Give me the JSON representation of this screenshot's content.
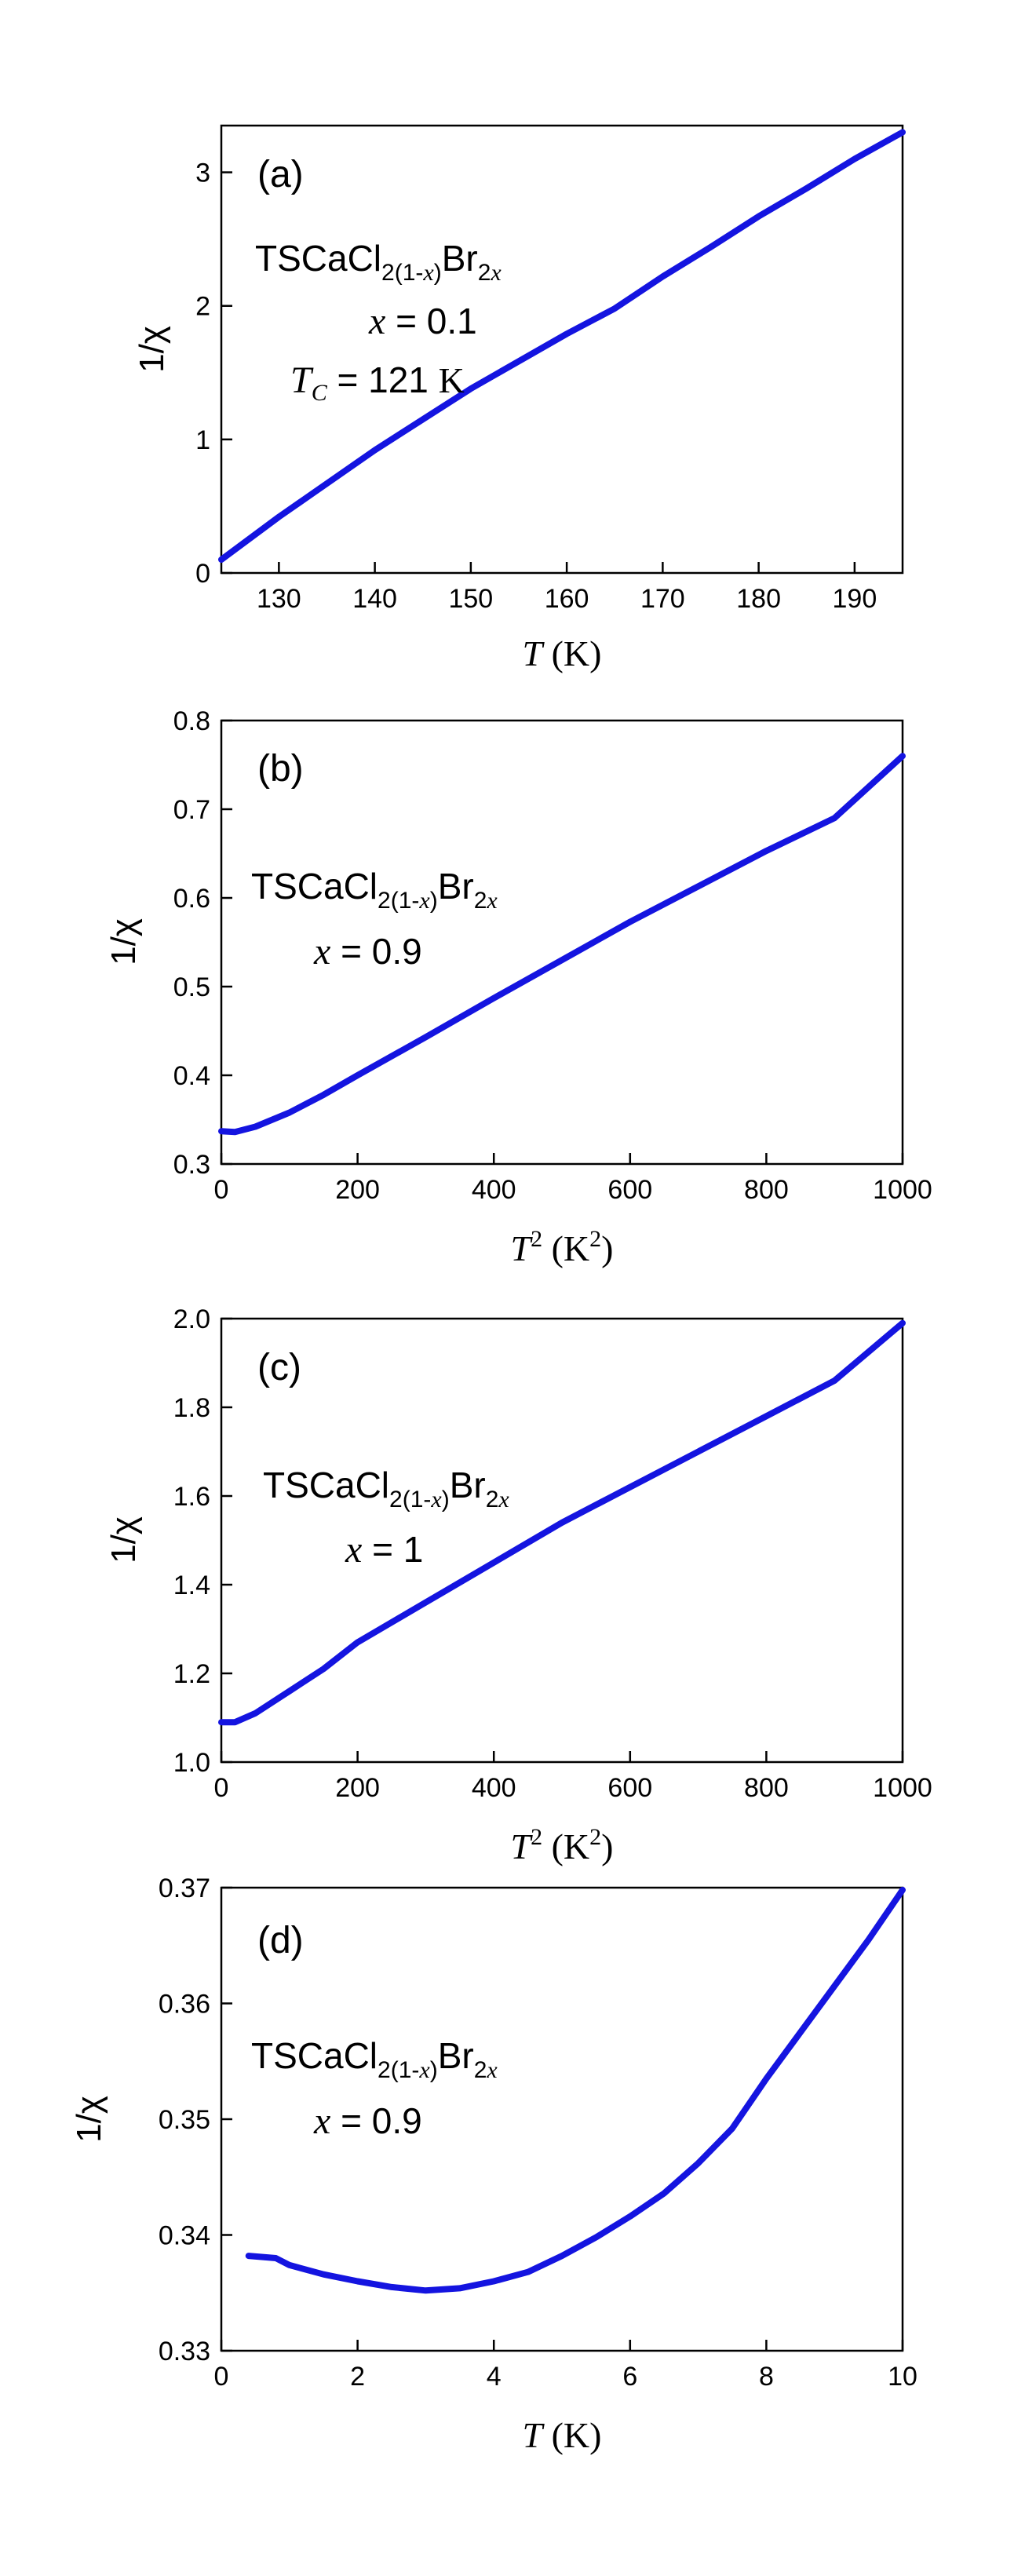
{
  "chart_data": [
    {
      "type": "line",
      "panel_label": "(a)",
      "ylabel": "1/χ",
      "xlabel": {
        "var": "T",
        "unit": " (K)"
      },
      "xlim": [
        124,
        195
      ],
      "ylim": [
        0,
        3.35
      ],
      "xticks": [
        130,
        140,
        150,
        160,
        170,
        180,
        190
      ],
      "yticks": [
        0,
        1,
        2,
        3
      ],
      "formula": {
        "main": "TSCaCl",
        "sub1": "2(1-",
        "sub1_var": "x",
        "sub1_close": ")",
        "mid": "Br",
        "sub2": "2",
        "sub2_var": "x"
      },
      "annotations": [
        {
          "var": "x",
          "text": " = 0.1"
        },
        {
          "var": "T",
          "sub": "C",
          "text": " = 121 ",
          "unit": "K"
        }
      ],
      "series": [
        {
          "x": [
            124,
            130,
            140,
            150,
            160,
            165,
            170,
            175,
            180,
            185,
            190,
            195
          ],
          "y": [
            0.1,
            0.42,
            0.92,
            1.38,
            1.79,
            1.98,
            2.22,
            2.44,
            2.67,
            2.88,
            3.1,
            3.3
          ]
        }
      ]
    },
    {
      "type": "line",
      "panel_label": "(b)",
      "ylabel": "1/χ",
      "xlabel": {
        "var": "T",
        "sup": "2",
        "unit": " (K",
        "unit_sup": "2",
        "unit_close": ")"
      },
      "xlim": [
        0,
        1000
      ],
      "ylim": [
        0.3,
        0.8
      ],
      "xticks": [
        0,
        200,
        400,
        600,
        800,
        1000
      ],
      "yticks": [
        0.3,
        0.4,
        0.5,
        0.6,
        0.7,
        0.8
      ],
      "formula": {
        "main": "TSCaCl",
        "sub1": "2(1-",
        "sub1_var": "x",
        "sub1_close": ")",
        "mid": "Br",
        "sub2": "2",
        "sub2_var": "x"
      },
      "annotations": [
        {
          "var": "x",
          "text": " = 0.9"
        }
      ],
      "series": [
        {
          "x": [
            0,
            20,
            50,
            100,
            150,
            200,
            300,
            400,
            500,
            600,
            700,
            800,
            900,
            1000
          ],
          "y": [
            0.337,
            0.336,
            0.342,
            0.358,
            0.378,
            0.4,
            0.443,
            0.487,
            0.53,
            0.573,
            0.613,
            0.653,
            0.69,
            0.76
          ]
        }
      ]
    },
    {
      "type": "line",
      "panel_label": "(c)",
      "ylabel": "1/χ",
      "xlabel": {
        "var": "T",
        "sup": "2",
        "unit": " (K",
        "unit_sup": "2",
        "unit_close": ")"
      },
      "xlim": [
        0,
        1000
      ],
      "ylim": [
        1.0,
        2.0
      ],
      "xticks": [
        0,
        200,
        400,
        600,
        800,
        1000
      ],
      "yticks": [
        1.0,
        1.2,
        1.4,
        1.6,
        1.8,
        2.0
      ],
      "formula": {
        "main": "TSCaCl",
        "sub1": "2(1-",
        "sub1_var": "x",
        "sub1_close": ")",
        "mid": "Br",
        "sub2": "2",
        "sub2_var": "x"
      },
      "annotations": [
        {
          "var": "x",
          "text": " = 1"
        }
      ],
      "series": [
        {
          "x": [
            0,
            20,
            50,
            100,
            150,
            200,
            300,
            400,
            500,
            600,
            700,
            800,
            900,
            1000
          ],
          "y": [
            1.09,
            1.09,
            1.11,
            1.16,
            1.21,
            1.27,
            1.36,
            1.45,
            1.54,
            1.62,
            1.7,
            1.78,
            1.86,
            1.99
          ]
        }
      ]
    },
    {
      "type": "scatter",
      "panel_label": "(d)",
      "ylabel": "1/χ",
      "xlabel": {
        "var": "T",
        "unit": " (K)"
      },
      "xlim": [
        0,
        10
      ],
      "ylim": [
        0.33,
        0.37
      ],
      "xticks": [
        0,
        2,
        4,
        6,
        8,
        10
      ],
      "yticks": [
        0.33,
        0.34,
        0.35,
        0.36,
        0.37
      ],
      "formula": {
        "main": "TSCaCl",
        "sub1": "2(1-",
        "sub1_var": "x",
        "sub1_close": ")",
        "mid": "Br",
        "sub2": "2",
        "sub2_var": "x"
      },
      "annotations": [
        {
          "var": "x",
          "text": " = 0.9"
        }
      ],
      "series": [
        {
          "x": [
            0.4,
            0.8,
            1.0,
            1.5,
            2.0,
            2.5,
            3.0,
            3.5,
            4.0,
            4.5,
            5.0,
            5.5,
            6.0,
            6.5,
            7.0,
            7.5,
            8.0,
            8.5,
            9.0,
            9.5,
            10.0
          ],
          "y": [
            0.3382,
            0.338,
            0.3374,
            0.3366,
            0.336,
            0.3355,
            0.3352,
            0.3354,
            0.336,
            0.3368,
            0.3382,
            0.3398,
            0.3416,
            0.3436,
            0.3462,
            0.3492,
            0.3535,
            0.3575,
            0.3615,
            0.3655,
            0.3698
          ]
        }
      ]
    }
  ]
}
